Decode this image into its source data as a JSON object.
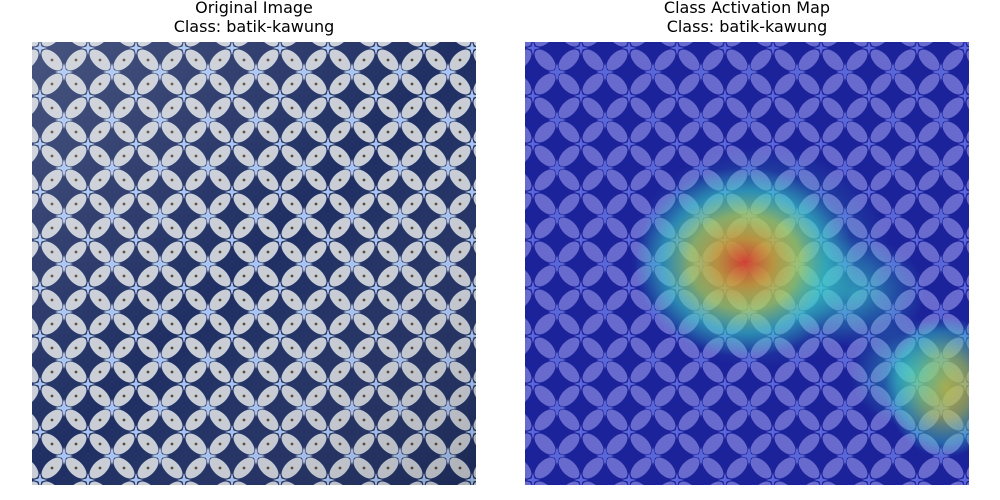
{
  "panels": [
    {
      "name": "original",
      "title": "Original Image",
      "class_label": "Class: batik-kawung"
    },
    {
      "name": "cam",
      "title": "Class Activation Map",
      "class_label": "Class: batik-kawung"
    }
  ],
  "colors": {
    "batik_bg": "#1f2f63",
    "batik_petal": "#c9cdd6",
    "batik_star": "#a8c4ef",
    "batik_dot": "#5a4a2a",
    "cam_low": "#1a1ac8",
    "cam_mid": "#38e0c8",
    "cam_mid2": "#c8e040",
    "cam_high": "#e8301c"
  }
}
